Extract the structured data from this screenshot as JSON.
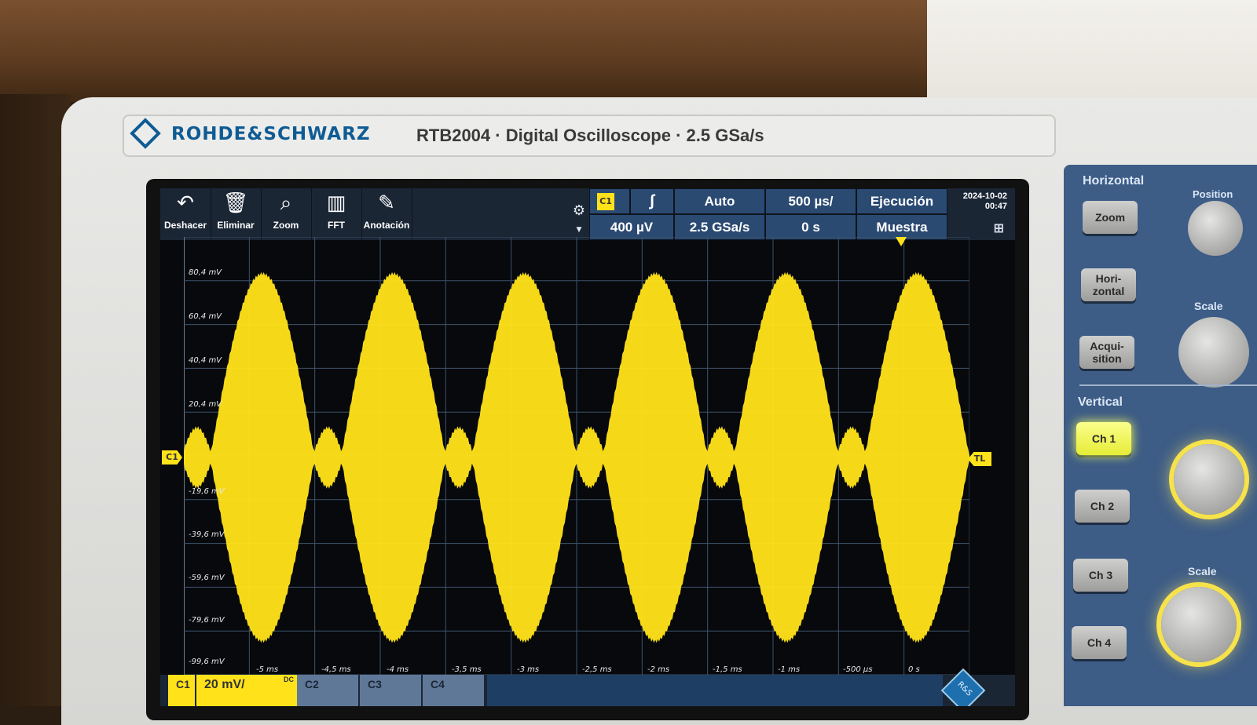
{
  "device": {
    "brand": "ROHDE&SCHWARZ",
    "logo_letters": "R&S",
    "model_line": "RTB2004 · Digital Oscilloscope · 2.5 GSa/s"
  },
  "toolbar": {
    "tools": [
      {
        "label": "Deshacer",
        "icon": "undo-icon"
      },
      {
        "label": "Eliminar",
        "icon": "trash-icon"
      },
      {
        "label": "Zoom",
        "icon": "zoom-icon"
      },
      {
        "label": "FFT",
        "icon": "fft-icon"
      },
      {
        "label": "Anotación",
        "icon": "pencil-icon"
      }
    ],
    "settings_icon": "gear-icon"
  },
  "status": {
    "trigger_source": "C1",
    "trigger_slope_icon": "rising-edge-icon",
    "trigger_mode": "Auto",
    "time_scale": "500 µs/",
    "run_state": "Ejecución",
    "trigger_level": "400 µV",
    "sample_rate": "2.5 GSa/s",
    "time_position": "0 s",
    "acq_mode": "Muestra",
    "date": "2024-10-02",
    "time": "00:47",
    "network_icon": "network-icon"
  },
  "markers": {
    "channel": "C1",
    "trigger_level": "TL"
  },
  "chart_data": {
    "type": "line",
    "series": [
      {
        "color": "#ffe21a"
      }
    ],
    "y_tick_labels": [
      "80,4 mV",
      "60,4 mV",
      "40,4 mV",
      "20,4 mV",
      "-19,6 mV",
      "-39,6 mV",
      "-59,6 mV",
      "-79,6 mV",
      "-99,6 mV"
    ],
    "x_tick_labels": [
      "-5 ms",
      "-4,5 ms",
      "-4 ms",
      "-3,5 ms",
      "-3 ms",
      "-2,5 ms",
      "-2 ms",
      "-1,5 ms",
      "-1 ms",
      "-500 µs",
      "0 s"
    ],
    "grid": true,
    "grid_divisions": {
      "x": 12,
      "y": 10
    },
    "envelope": {
      "big_lobe_peak_mV": 80,
      "small_lobe_peak_mV": 13,
      "big_lobe_centers_ms": [
        -4.9,
        -3.9,
        -2.9,
        -1.9,
        -0.9,
        0.1
      ],
      "small_lobe_centers_ms": [
        -5.4,
        -4.4,
        -3.4,
        -2.4,
        -1.4,
        -0.4
      ],
      "x_range_ms": [
        -5.5,
        0.5
      ]
    }
  },
  "bottom_bar": {
    "channels": [
      {
        "label": "C1",
        "scale": "20 mV/",
        "coupling": "DC",
        "active": true
      },
      {
        "label": "C2",
        "active": false
      },
      {
        "label": "C3",
        "active": false
      },
      {
        "label": "C4",
        "active": false
      }
    ]
  },
  "panel": {
    "horizontal_title": "Horizontal",
    "horizontal_buttons": [
      "Zoom",
      "Hori-\nzontal",
      "Acqui-\nsition"
    ],
    "position_label": "Position",
    "scale_label": "Scale",
    "vertical_title": "Vertical",
    "vertical_buttons": [
      "Ch 1",
      "Ch 2",
      "Ch 3",
      "Ch 4"
    ],
    "vertical_scale_label": "Scale"
  }
}
